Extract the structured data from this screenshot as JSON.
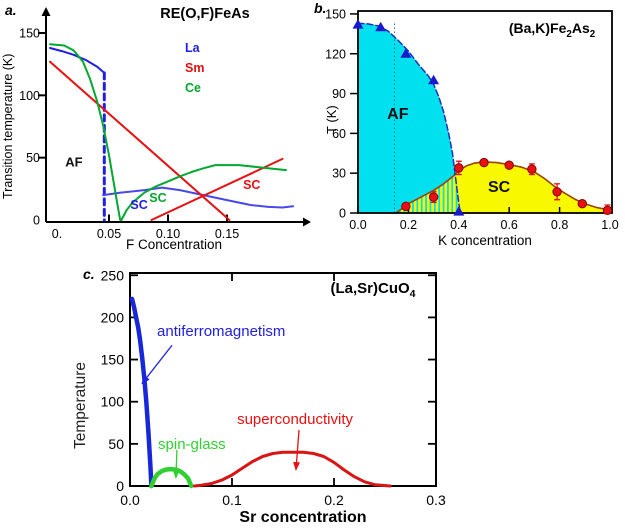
{
  "chart_data": [
    {
      "id": "a",
      "type": "line",
      "panel_label": "a.",
      "title": "RE(O,F)FeAs",
      "xlabel": "F Concentration",
      "ylabel": "Transition temperature  (K)",
      "xlim": [
        0,
        0.21
      ],
      "ylim": [
        0,
        165
      ],
      "grid": false,
      "xticks": {
        "values": [
          0.05,
          0.1,
          0.15
        ],
        "labels": [
          "0.05",
          "0.10",
          "0.15"
        ],
        "origin_label": "0."
      },
      "yticks": {
        "values": [
          0,
          50,
          100,
          150
        ],
        "labels": [
          "0",
          "50",
          "100",
          "150"
        ]
      },
      "legend": [
        {
          "label": "La",
          "color": "#2020e0"
        },
        {
          "label": "Sm",
          "color": "#e81010"
        },
        {
          "label": "Ce",
          "color": "#00a830"
        }
      ],
      "series": [
        {
          "name": "La-AF-Tn",
          "color": "#2020e0",
          "width": 2,
          "points": [
            [
              0,
              138
            ],
            [
              0.01,
              135.5
            ],
            [
              0.02,
              132.5
            ],
            [
              0.03,
              128.5
            ],
            [
              0.04,
              123
            ],
            [
              0.046,
              118
            ]
          ]
        },
        {
          "name": "La-drop-dashed",
          "color": "#2020e0",
          "width": 3,
          "dash": "6,4.5",
          "points": [
            [
              0.046,
              118
            ],
            [
              0.046,
              0
            ]
          ]
        },
        {
          "name": "La-SC-Tc",
          "color": "#4848e8",
          "width": 2,
          "points": [
            [
              0.045,
              20
            ],
            [
              0.06,
              22
            ],
            [
              0.08,
              24
            ],
            [
              0.095,
              26
            ],
            [
              0.11,
              24
            ],
            [
              0.13,
              20
            ],
            [
              0.15,
              16
            ],
            [
              0.17,
              12
            ],
            [
              0.185,
              10.5
            ],
            [
              0.197,
              10
            ],
            [
              0.206,
              11
            ]
          ]
        },
        {
          "name": "Sm-AF-Tn",
          "color": "#e81010",
          "width": 2,
          "points": [
            [
              0,
              127
            ],
            [
              0.152,
              0
            ]
          ]
        },
        {
          "name": "Sm-SC-Tc",
          "color": "#e81010",
          "width": 2,
          "points": [
            [
              0.086,
              0
            ],
            [
              0.197,
              49
            ]
          ]
        },
        {
          "name": "Ce-AF-Tn",
          "color": "#00a830",
          "width": 2,
          "points": [
            [
              0,
              141
            ],
            [
              0.012,
              140
            ],
            [
              0.02,
              136
            ],
            [
              0.028,
              127
            ],
            [
              0.034,
              113
            ],
            [
              0.04,
              95
            ],
            [
              0.045,
              76
            ],
            [
              0.05,
              52
            ],
            [
              0.054,
              30
            ],
            [
              0.058,
              8
            ],
            [
              0.0595,
              0
            ]
          ]
        },
        {
          "name": "Ce-SC-Tc",
          "color": "#00a830",
          "width": 2,
          "points": [
            [
              0.0605,
              0
            ],
            [
              0.065,
              8
            ],
            [
              0.07,
              14
            ],
            [
              0.08,
              22
            ],
            [
              0.09,
              27
            ],
            [
              0.1,
              31
            ],
            [
              0.11,
              35
            ],
            [
              0.12,
              38.5
            ],
            [
              0.13,
              41.5
            ],
            [
              0.14,
              44
            ],
            [
              0.16,
              44
            ],
            [
              0.18,
              42
            ],
            [
              0.2,
              40
            ]
          ]
        }
      ],
      "region_labels": [
        {
          "text": "AF",
          "color": "#111111",
          "x": 0.0203,
          "y": 46.5,
          "size": 13
        },
        {
          "text": "SC",
          "color": "#2020e0",
          "x": 0.0755,
          "y": 12,
          "size": 12.5
        },
        {
          "text": "SC",
          "color": "#00a830",
          "x": 0.0915,
          "y": 17.6,
          "size": 12.5
        },
        {
          "text": "SC",
          "color": "#e81010",
          "x": 0.171,
          "y": 28,
          "size": 12.5
        }
      ]
    },
    {
      "id": "b",
      "type": "area-scatter",
      "panel_label": "b.",
      "title_rich": [
        {
          "t": "(Ba,K)Fe"
        },
        {
          "t": "2",
          "sub": true
        },
        {
          "t": "As"
        },
        {
          "t": "2",
          "sub": true
        }
      ],
      "xlabel": "K concentration",
      "ylabel": "T (K)",
      "xlim": [
        0,
        1.0
      ],
      "ylim": [
        0,
        150
      ],
      "grid": false,
      "xticks": {
        "values": [
          0,
          0.2,
          0.4,
          0.6,
          0.8,
          1.0
        ],
        "labels": [
          "0.0",
          "0.2",
          "0.4",
          "0.6",
          "0.8",
          "1.0"
        ]
      },
      "yticks": {
        "values": [
          0,
          30,
          60,
          90,
          120,
          150
        ],
        "labels": [
          "0",
          "30",
          "60",
          "90",
          "120",
          "150"
        ]
      },
      "areas": [
        {
          "name": "SC-dome",
          "fill": "#f8f800",
          "stroke": "#994400",
          "stroke_width": 1.6,
          "points": [
            [
              0.15,
              0
            ],
            [
              0.18,
              4
            ],
            [
              0.2,
              7
            ],
            [
              0.25,
              12
            ],
            [
              0.3,
              17
            ],
            [
              0.34,
              22
            ],
            [
              0.38,
              28
            ],
            [
              0.4,
              32
            ],
            [
              0.43,
              35.5
            ],
            [
              0.46,
              37.5
            ],
            [
              0.5,
              38.5
            ],
            [
              0.55,
              38
            ],
            [
              0.6,
              36.5
            ],
            [
              0.65,
              34.5
            ],
            [
              0.7,
              31
            ],
            [
              0.74,
              26
            ],
            [
              0.78,
              20
            ],
            [
              0.82,
              15
            ],
            [
              0.86,
              10.5
            ],
            [
              0.9,
              7
            ],
            [
              0.95,
              4
            ],
            [
              1.005,
              2
            ]
          ]
        },
        {
          "name": "AF-region",
          "fill": "#00e0ee",
          "stroke": "#2030b8",
          "stroke_width": 1.5,
          "dash": "6,3",
          "points": [
            [
              0,
              143
            ],
            [
              0.04,
              142.5
            ],
            [
              0.08,
              141
            ],
            [
              0.12,
              137
            ],
            [
              0.16,
              130
            ],
            [
              0.2,
              122
            ],
            [
              0.24,
              112
            ],
            [
              0.28,
              103
            ],
            [
              0.3,
              97
            ],
            [
              0.32,
              88
            ],
            [
              0.34,
              76
            ],
            [
              0.36,
              60
            ],
            [
              0.375,
              45
            ],
            [
              0.385,
              30
            ],
            [
              0.395,
              15
            ],
            [
              0.405,
              0
            ]
          ]
        }
      ],
      "coexistence_stripes": {
        "x_start": 0.175,
        "x_end": 0.4,
        "count": 14,
        "color": "#f8f800"
      },
      "dotted_line": {
        "x": 0.145,
        "top": 143,
        "color": "#336677"
      },
      "markers": {
        "triangles": {
          "name": "AF-Tn-points",
          "color": "#1a1acc",
          "points": [
            [
              0.0,
              142
            ],
            [
              0.09,
              140
            ],
            [
              0.19,
              120
            ],
            [
              0.3,
              100
            ],
            [
              0.4,
              1
            ]
          ]
        },
        "circles": {
          "name": "SC-Tc-points",
          "color": "#e81010",
          "edge": "#880000",
          "points": [
            [
              0.19,
              5
            ],
            [
              0.3,
              12
            ],
            [
              0.4,
              34
            ],
            [
              0.5,
              38
            ],
            [
              0.6,
              36
            ],
            [
              0.69,
              33
            ],
            [
              0.79,
              16
            ],
            [
              0.89,
              7
            ],
            [
              0.99,
              2
            ]
          ],
          "errors": [
            2,
            4,
            5,
            2,
            2,
            4,
            6,
            2,
            4
          ]
        }
      },
      "region_labels": [
        {
          "text": "AF",
          "color": "#111111",
          "x": 0.158,
          "y": 74,
          "size": 16
        },
        {
          "text": "SC",
          "color": "#111111",
          "x": 0.56,
          "y": 19,
          "size": 16
        }
      ]
    },
    {
      "id": "c",
      "type": "line",
      "panel_label": "c.",
      "title_rich": [
        {
          "t": "(La,Sr)CuO"
        },
        {
          "t": "4",
          "sub": true
        }
      ],
      "xlabel": "Sr concentration",
      "ylabel": "Temperature",
      "xlim": [
        0,
        0.3
      ],
      "ylim": [
        0,
        252
      ],
      "grid": false,
      "xticks": {
        "values": [
          0,
          0.1,
          0.2,
          0.3
        ],
        "labels": [
          "0.0",
          "0.1",
          "0.2",
          "0.3"
        ]
      },
      "yticks": {
        "values": [
          0,
          50,
          100,
          150,
          200,
          250
        ],
        "labels": [
          "0",
          "50",
          "100",
          "150",
          "200",
          "250"
        ]
      },
      "series": [
        {
          "name": "antiferromagnetism",
          "color": "#1828d8",
          "width": 4.5,
          "points": [
            [
              0.002,
              222
            ],
            [
              0.004,
              212
            ],
            [
              0.006,
              200
            ],
            [
              0.008,
              188
            ],
            [
              0.01,
              172
            ],
            [
              0.012,
              152
            ],
            [
              0.014,
              128
            ],
            [
              0.016,
              100
            ],
            [
              0.018,
              64
            ],
            [
              0.02,
              24
            ],
            [
              0.021,
              0
            ]
          ]
        },
        {
          "name": "spin-glass",
          "color": "#30d030",
          "width": 4.5,
          "points": [
            [
              0.021,
              0
            ],
            [
              0.024,
              9
            ],
            [
              0.027,
              14
            ],
            [
              0.031,
              17.5
            ],
            [
              0.035,
              19.5
            ],
            [
              0.04,
              20
            ],
            [
              0.045,
              19.5
            ],
            [
              0.049,
              17.5
            ],
            [
              0.053,
              14
            ],
            [
              0.057,
              9
            ],
            [
              0.06,
              0
            ]
          ]
        },
        {
          "name": "superconductivity",
          "color": "#d81414",
          "width": 3,
          "points": [
            [
              0.063,
              0
            ],
            [
              0.07,
              1
            ],
            [
              0.08,
              3
            ],
            [
              0.09,
              7
            ],
            [
              0.1,
              13
            ],
            [
              0.11,
              21
            ],
            [
              0.12,
              29
            ],
            [
              0.13,
              35
            ],
            [
              0.14,
              38.5
            ],
            [
              0.15,
              40
            ],
            [
              0.17,
              40
            ],
            [
              0.18,
              38.5
            ],
            [
              0.19,
              35
            ],
            [
              0.2,
              28
            ],
            [
              0.21,
              19
            ],
            [
              0.22,
              11
            ],
            [
              0.23,
              5
            ],
            [
              0.24,
              1.5
            ],
            [
              0.255,
              0
            ]
          ]
        }
      ],
      "annotations": [
        {
          "text": "antiferromagnetism",
          "color": "#2020e0",
          "label_x": 0.0265,
          "label_y": 193,
          "arrow": {
            "x1": 0.0412,
            "y1": 167,
            "x2": 0.0118,
            "y2": 121.5
          }
        },
        {
          "text": "spin-glass",
          "color": "#30d030",
          "label_x": 0.0275,
          "label_y": 59,
          "arrow": {
            "x1": 0.046,
            "y1": 42.7,
            "x2": 0.045,
            "y2": 9.5
          }
        },
        {
          "text": "superconductivity",
          "color": "#e81010",
          "label_x": 0.105,
          "label_y": 89,
          "arrow": {
            "x1": 0.1657,
            "y1": 66.4,
            "x2": 0.1627,
            "y2": 19
          }
        }
      ]
    }
  ]
}
